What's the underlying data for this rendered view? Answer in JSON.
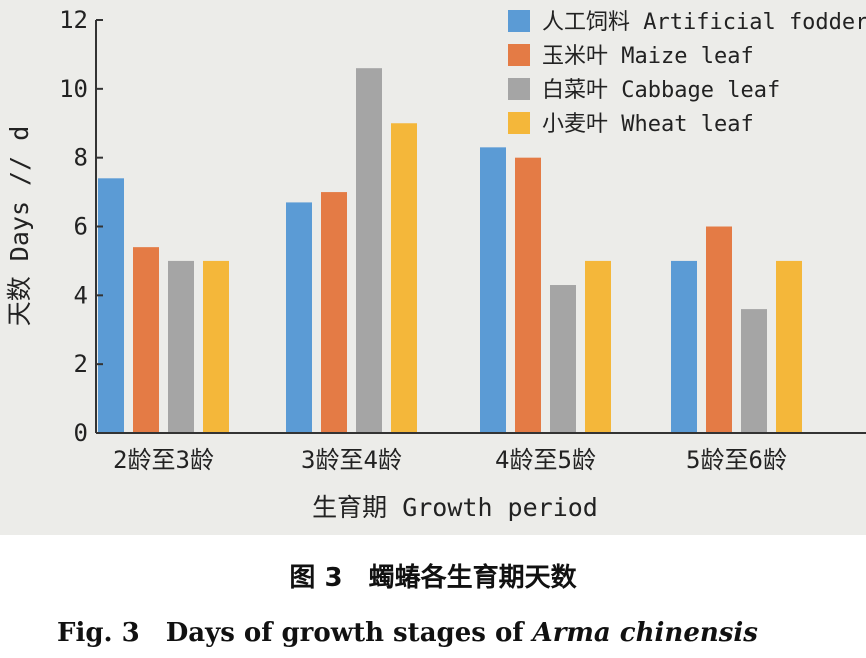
{
  "chart_data": {
    "type": "bar",
    "categories": [
      "2龄至3龄",
      "3龄至4龄",
      "4龄至5龄",
      "5龄至6龄"
    ],
    "series": [
      {
        "name": "人工饲料 Artificial fodder",
        "color": "#5b9bd5",
        "values": [
          7.4,
          6.7,
          8.3,
          5.0
        ]
      },
      {
        "name": "玉米叶 Maize leaf",
        "color": "#e47b45",
        "values": [
          5.4,
          7.0,
          8.0,
          6.0
        ]
      },
      {
        "name": "白菜叶 Cabbage leaf",
        "color": "#a5a5a5",
        "values": [
          5.0,
          10.6,
          4.3,
          3.6
        ]
      },
      {
        "name": "小麦叶 Wheat leaf",
        "color": "#f4b73a",
        "values": [
          5.0,
          9.0,
          5.0,
          5.0
        ]
      }
    ],
    "ylim": [
      0,
      12
    ],
    "yticks": [
      "0",
      "2",
      "4",
      "6",
      "8",
      "10",
      "12"
    ],
    "xlabel": "生育期 Growth period",
    "ylabel": "天数 Days // d",
    "legend_position": "top-right"
  },
  "caption": {
    "cn": "图 3　蠋蝽各生育期天数",
    "en_prefix": "Fig. 3　Days of growth stages of ",
    "en_species": "Arma chinensis"
  }
}
